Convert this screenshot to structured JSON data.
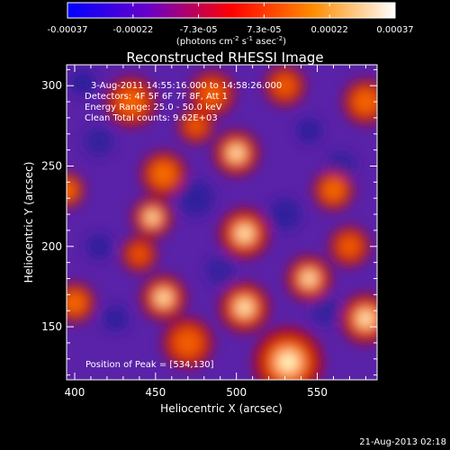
{
  "colorbar": {
    "tick_labels": [
      "-0.00037",
      "-0.00022",
      "-7.3e-05",
      "7.3e-05",
      "0.00022",
      "0.00037"
    ],
    "unit_prefix": "(photons cm",
    "unit_exp1": "-2",
    "unit_mid": " s",
    "unit_exp2": "-1",
    "unit_mid2": " asec",
    "unit_exp3": "-2",
    "unit_suffix": ")",
    "colors": [
      "#0000ff",
      "#6a00c8",
      "#ff0000",
      "#ff8c00",
      "#ffffff"
    ]
  },
  "chart_data": {
    "type": "heatmap",
    "title": "Reconstructed RHESSI Image",
    "xlabel": "Heliocentric X (arcsec)",
    "ylabel": "Heliocentric Y (arcsec)",
    "xlim": [
      395,
      587
    ],
    "ylim": [
      117,
      313
    ],
    "x_ticks": [
      400,
      450,
      500,
      550
    ],
    "y_ticks": [
      150,
      200,
      250,
      300
    ],
    "annotations": [
      "3-Aug-2011 14:55:16.000 to 14:58:26.000",
      "Detectors: 4F 5F 6F 7F 8F, Att 1",
      "Energy Range: 25.0 - 50.0 keV",
      "Clean     Total counts: 9.62E+03"
    ],
    "peak_label": "Position of Peak = [534,130]",
    "peak": [
      534,
      130
    ],
    "color_range": [
      -0.00037,
      0.00037
    ],
    "hot_spots": [
      {
        "x": 532,
        "y": 128,
        "level": 1.0,
        "r": 14
      },
      {
        "x": 505,
        "y": 162,
        "level": 0.95,
        "r": 10
      },
      {
        "x": 580,
        "y": 155,
        "level": 0.95,
        "r": 10
      },
      {
        "x": 455,
        "y": 168,
        "level": 0.9,
        "r": 9
      },
      {
        "x": 545,
        "y": 180,
        "level": 0.85,
        "r": 9
      },
      {
        "x": 505,
        "y": 208,
        "level": 0.9,
        "r": 10
      },
      {
        "x": 448,
        "y": 218,
        "level": 0.85,
        "r": 8
      },
      {
        "x": 500,
        "y": 258,
        "level": 0.95,
        "r": 9
      },
      {
        "x": 455,
        "y": 245,
        "level": 0.8,
        "r": 9
      },
      {
        "x": 395,
        "y": 235,
        "level": 0.8,
        "r": 7
      },
      {
        "x": 560,
        "y": 235,
        "level": 0.75,
        "r": 8
      },
      {
        "x": 400,
        "y": 165,
        "level": 0.75,
        "r": 8
      },
      {
        "x": 435,
        "y": 290,
        "level": 0.65,
        "r": 10
      },
      {
        "x": 485,
        "y": 295,
        "level": 0.6,
        "r": 9
      },
      {
        "x": 580,
        "y": 290,
        "level": 0.7,
        "r": 9
      },
      {
        "x": 570,
        "y": 200,
        "level": 0.55,
        "r": 8
      },
      {
        "x": 470,
        "y": 140,
        "level": 0.6,
        "r": 10
      },
      {
        "x": 440,
        "y": 195,
        "level": 0.45,
        "r": 7
      },
      {
        "x": 530,
        "y": 300,
        "level": 0.55,
        "r": 8
      },
      {
        "x": 475,
        "y": 275,
        "level": 0.5,
        "r": 7
      }
    ],
    "cold_spots": [
      {
        "x": 405,
        "y": 302,
        "level": 1.0,
        "r": 7
      },
      {
        "x": 415,
        "y": 200,
        "level": 0.9,
        "r": 7
      },
      {
        "x": 425,
        "y": 155,
        "level": 0.9,
        "r": 7
      },
      {
        "x": 545,
        "y": 272,
        "level": 0.9,
        "r": 7
      },
      {
        "x": 475,
        "y": 230,
        "level": 0.7,
        "r": 10
      },
      {
        "x": 530,
        "y": 220,
        "level": 0.7,
        "r": 9
      },
      {
        "x": 565,
        "y": 250,
        "level": 0.6,
        "r": 8
      },
      {
        "x": 415,
        "y": 265,
        "level": 0.6,
        "r": 8
      },
      {
        "x": 555,
        "y": 160,
        "level": 0.55,
        "r": 8
      },
      {
        "x": 490,
        "y": 185,
        "level": 0.5,
        "r": 8
      }
    ]
  },
  "footer": {
    "timestamp": "21-Aug-2013 02:18"
  }
}
